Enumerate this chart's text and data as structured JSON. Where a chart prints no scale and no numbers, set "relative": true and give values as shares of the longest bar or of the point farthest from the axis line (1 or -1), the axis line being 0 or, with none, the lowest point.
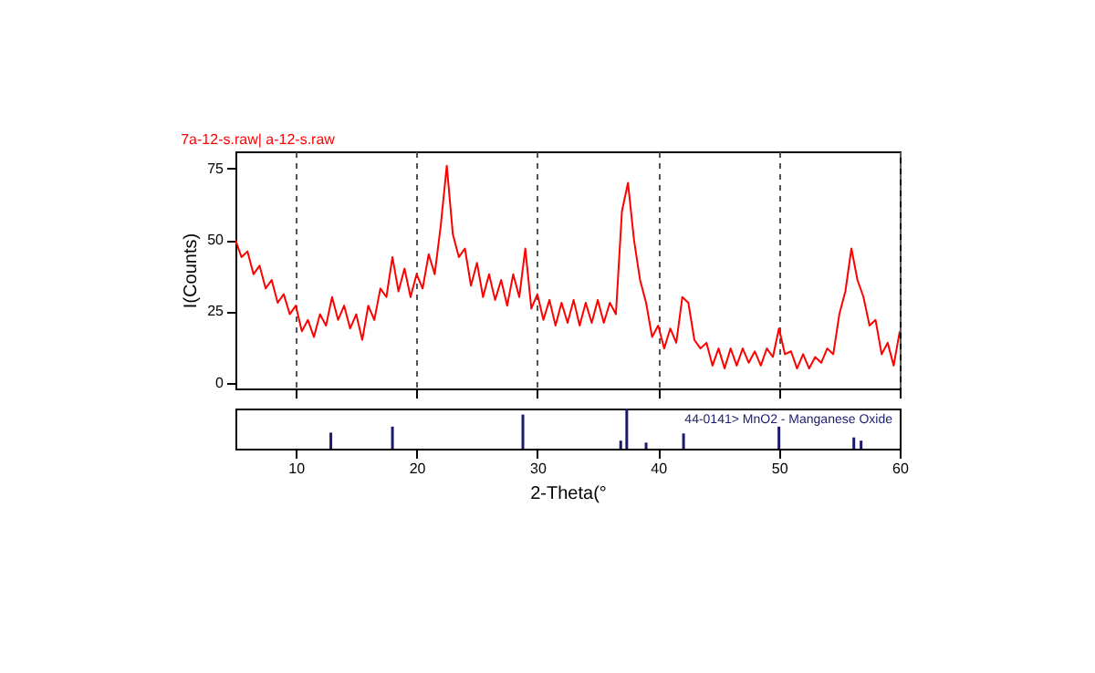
{
  "chart_data": [
    {
      "type": "line",
      "title": "7a-12-s.raw| a-12-s.raw",
      "ylabel": "I(Counts)",
      "x": [
        5,
        5.5,
        6,
        6.5,
        7,
        7.5,
        8,
        8.5,
        9,
        9.5,
        10,
        10.5,
        11,
        11.5,
        12,
        12.5,
        13,
        13.5,
        14,
        14.5,
        15,
        15.5,
        16,
        16.5,
        17,
        17.5,
        18,
        18.5,
        19,
        19.5,
        20,
        20.5,
        21,
        21.5,
        22,
        22.5,
        23,
        23.5,
        24,
        24.5,
        25,
        25.5,
        26,
        26.5,
        27,
        27.5,
        28,
        28.5,
        29,
        29.5,
        30,
        30.5,
        31,
        31.5,
        32,
        32.5,
        33,
        33.5,
        34,
        34.5,
        35,
        35.5,
        36,
        36.5,
        37,
        37.5,
        38,
        38.5,
        39,
        39.5,
        40,
        40.5,
        41,
        41.5,
        42,
        42.5,
        43,
        43.5,
        44,
        44.5,
        45,
        45.5,
        46,
        46.5,
        47,
        47.5,
        48,
        48.5,
        49,
        49.5,
        50,
        50.5,
        51,
        51.5,
        52,
        52.5,
        53,
        53.5,
        54,
        54.5,
        55,
        55.5,
        56,
        56.5,
        57,
        57.5,
        58,
        58.5,
        59,
        59.5,
        60
      ],
      "series": [
        {
          "color": "#ff0000",
          "values": [
            50,
            44,
            46,
            38,
            41,
            33,
            36,
            28,
            31,
            24,
            27,
            18,
            22,
            16,
            24,
            20,
            30,
            22,
            27,
            19,
            24,
            15,
            27,
            22,
            33,
            30,
            44,
            32,
            40,
            30,
            38,
            33,
            45,
            38,
            55,
            76,
            52,
            44,
            47,
            34,
            42,
            30,
            38,
            29,
            36,
            27,
            38,
            30,
            47,
            26,
            31,
            22,
            29,
            20,
            28,
            21,
            29,
            20,
            28,
            21,
            29,
            21,
            28,
            24,
            60,
            70,
            50,
            36,
            28,
            16,
            20,
            12,
            19,
            14,
            30,
            28,
            15,
            12,
            14,
            6,
            12,
            5,
            12,
            6,
            12,
            7,
            11,
            6,
            12,
            9,
            19,
            10,
            11,
            5,
            10,
            5,
            9,
            7,
            12,
            10,
            24,
            32,
            47,
            36,
            30,
            20,
            22,
            10,
            14,
            6,
            18
          ]
        }
      ],
      "xlim": [
        5,
        60
      ],
      "xticks": [
        10,
        20,
        30,
        40,
        50,
        60
      ],
      "ylim": [
        -2,
        81
      ],
      "yticks": [
        0,
        25,
        50,
        75
      ],
      "grid": "x",
      "tick_labels": "y",
      "line_style": "solid",
      "marker": "none"
    },
    {
      "type": "bar",
      "xlabel": "2-Theta(°",
      "relative": true,
      "x": [
        12.9,
        18.0,
        28.8,
        36.9,
        37.4,
        39.0,
        42.1,
        50.0,
        56.2,
        56.8
      ],
      "series": [
        {
          "color": "#1a1a6e",
          "values": [
            0.4,
            0.55,
            0.85,
            0.2,
            1,
            0.15,
            0.38,
            0.55,
            0.28,
            0.2
          ]
        }
      ],
      "annotations": [
        "44-0141> MnO2 - Manganese Oxide"
      ],
      "xlim": [
        5,
        60
      ],
      "xticks": [
        10,
        20,
        30,
        40,
        50,
        60
      ],
      "tick_labels": "x"
    }
  ]
}
